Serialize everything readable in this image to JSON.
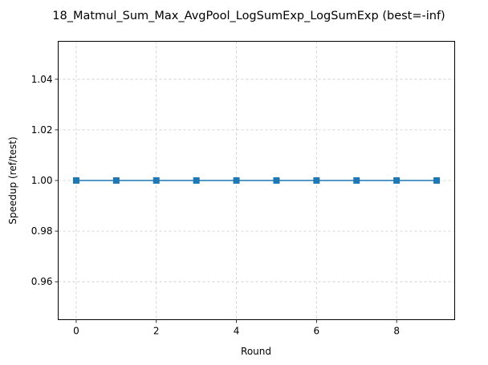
{
  "chart_data": {
    "type": "line",
    "title": "18_Matmul_Sum_Max_AvgPool_LogSumExp_LogSumExp (best=-inf)",
    "xlabel": "Round",
    "ylabel": "Speedup (ref/test)",
    "xlim": [
      -0.45,
      9.45
    ],
    "ylim": [
      0.945,
      1.055
    ],
    "x_ticks": [
      0,
      2,
      4,
      6,
      8
    ],
    "x_tick_labels": [
      "0",
      "2",
      "4",
      "6",
      "8"
    ],
    "y_ticks": [
      0.96,
      0.98,
      1.0,
      1.02,
      1.04
    ],
    "y_tick_labels": [
      "0.96",
      "0.98",
      "1.00",
      "1.02",
      "1.04"
    ],
    "grid": true,
    "marker": "square",
    "series": [
      {
        "color": "#1f77b4",
        "x": [
          0,
          1,
          2,
          3,
          4,
          5,
          6,
          7,
          8,
          9
        ],
        "values": [
          1.0,
          1.0,
          1.0,
          1.0,
          1.0,
          1.0,
          1.0,
          1.0,
          1.0,
          1.0
        ]
      }
    ]
  }
}
